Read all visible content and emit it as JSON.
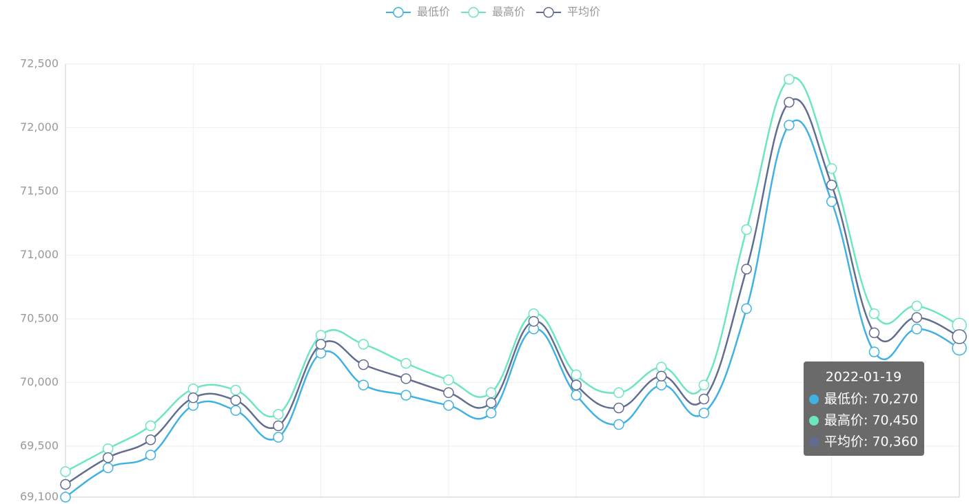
{
  "chart_data": {
    "type": "line",
    "smooth": true,
    "categories": [
      null,
      null,
      null,
      null,
      null,
      null,
      null,
      null,
      null,
      null,
      null,
      null,
      null,
      null,
      null,
      null,
      null,
      null,
      null,
      null,
      null,
      null
    ],
    "series": [
      {
        "name": "最低价",
        "color": "#3fb1e3",
        "values": [
          69100,
          69330,
          69430,
          69820,
          69780,
          69570,
          70230,
          69980,
          69900,
          69820,
          69760,
          70420,
          69900,
          69670,
          69980,
          69760,
          70580,
          72020,
          71420,
          70240,
          70420,
          70270
        ]
      },
      {
        "name": "最高价",
        "color": "#6be6c1",
        "values": [
          69300,
          69480,
          69660,
          69950,
          69940,
          69750,
          70370,
          70300,
          70150,
          70020,
          69920,
          70540,
          70060,
          69920,
          70120,
          69980,
          71200,
          72380,
          71680,
          70540,
          70600,
          70450
        ]
      },
      {
        "name": "平均价",
        "color": "#626c91",
        "values": [
          69200,
          69410,
          69550,
          69880,
          69860,
          69660,
          70300,
          70140,
          70030,
          69920,
          69840,
          70480,
          69980,
          69800,
          70050,
          69870,
          70890,
          72200,
          71550,
          70390,
          70510,
          70360
        ]
      }
    ],
    "ylim": [
      69100,
      72500
    ],
    "yticks": [
      {
        "value": 69100,
        "label": "69,100"
      },
      {
        "value": 69500,
        "label": "69,500"
      },
      {
        "value": 70000,
        "label": "70,000"
      },
      {
        "value": 70500,
        "label": "70,500"
      },
      {
        "value": 71000,
        "label": "71,000"
      },
      {
        "value": 71500,
        "label": "71,500"
      },
      {
        "value": 72000,
        "label": "72,000"
      },
      {
        "value": 72500,
        "label": "72,500"
      }
    ],
    "grid": true,
    "legend": "top",
    "tooltip": {
      "title": "2022-01-19",
      "rows": [
        "最低价: 70,270",
        "最高价: 70,450",
        "平均价: 70,360"
      ]
    }
  }
}
